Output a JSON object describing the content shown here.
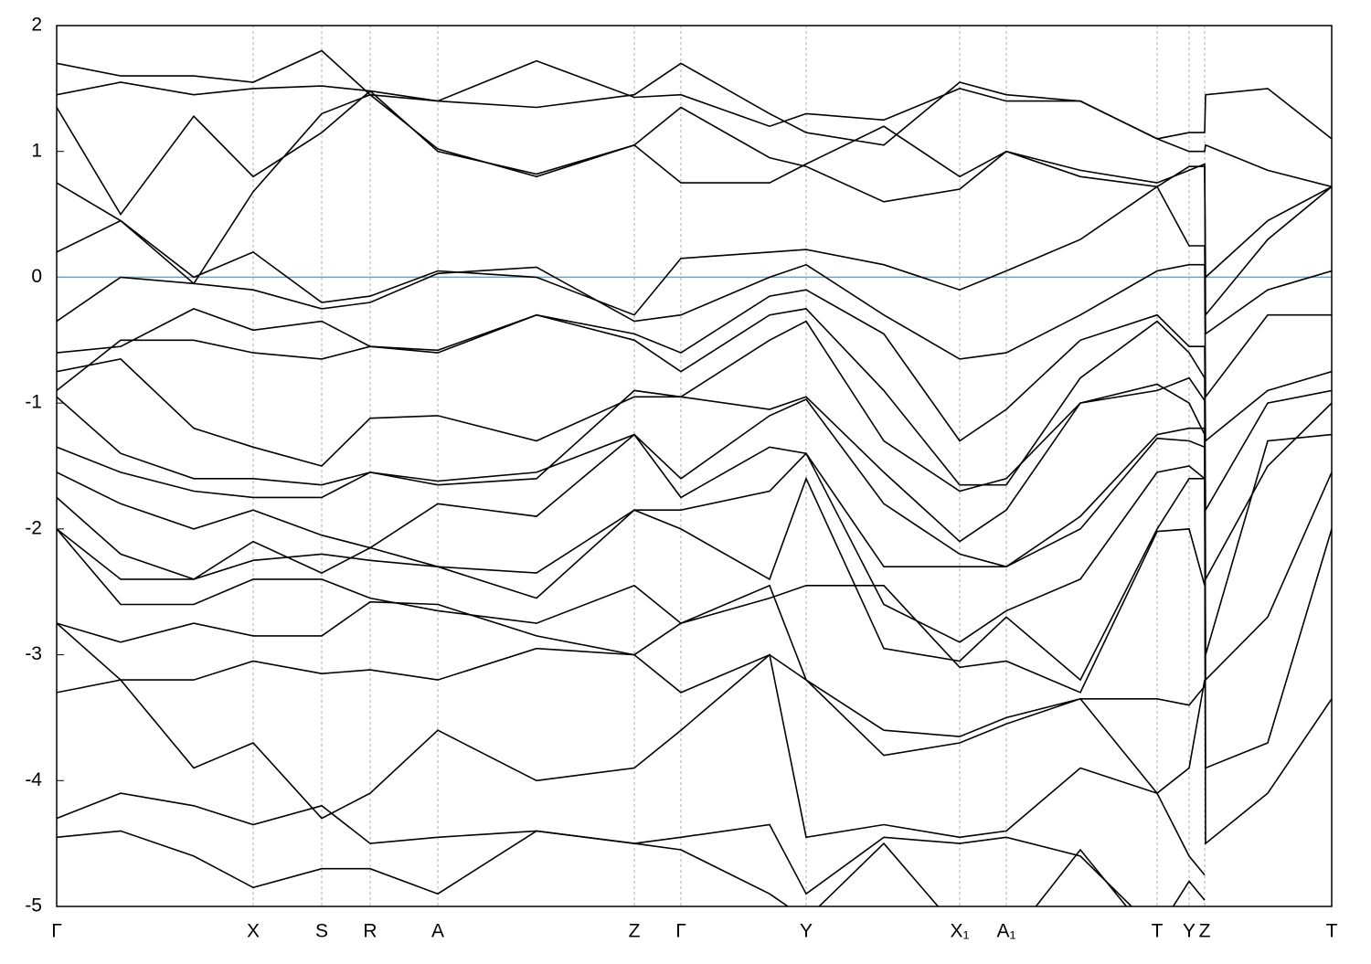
{
  "chart_data": {
    "type": "line",
    "xlim": [
      0,
      1395
    ],
    "ylim": [
      -5,
      2
    ],
    "yticks": [
      -5,
      -4,
      -3,
      -2,
      -1,
      0,
      1,
      2
    ],
    "xticks": [
      {
        "value": 0,
        "label": "Γ"
      },
      {
        "value": 215,
        "label": "X"
      },
      {
        "value": 290,
        "label": "S"
      },
      {
        "value": 343,
        "label": "R"
      },
      {
        "value": 417,
        "label": "A"
      },
      {
        "value": 632,
        "label": "Z"
      },
      {
        "value": 683,
        "label": "Γ"
      },
      {
        "value": 820,
        "label": "Y"
      },
      {
        "value": 988,
        "label": "X₁"
      },
      {
        "value": 1039,
        "label": "A₁"
      },
      {
        "value": 1204,
        "label": "T"
      },
      {
        "value": 1239,
        "label": "Y"
      },
      {
        "value": 1256,
        "label": "Z"
      },
      {
        "value": 1395,
        "label": "T"
      }
    ],
    "reference_line": {
      "value": 0,
      "color": "#5aaac8"
    },
    "x": [
      0,
      70,
      150,
      215,
      290,
      343,
      417,
      525,
      632,
      683,
      780,
      820,
      905,
      988,
      1039,
      1120,
      1204,
      1239,
      1256,
      1257,
      1325,
      1395
    ],
    "series": [
      {
        "color": "#000000",
        "values": [
          1.7,
          1.6,
          1.6,
          1.55,
          1.8,
          1.45,
          1.4,
          1.35,
          1.45,
          1.7,
          1.3,
          1.15,
          1.05,
          1.55,
          1.45,
          1.4,
          1.1,
          1.15,
          1.15,
          1.45,
          1.5,
          1.1
        ]
      },
      {
        "color": "#000000",
        "values": [
          1.45,
          1.55,
          1.45,
          1.5,
          1.52,
          1.48,
          1.4,
          1.72,
          1.43,
          1.45,
          1.2,
          1.3,
          1.25,
          1.5,
          1.4,
          1.4,
          1.1,
          1.0,
          1.0,
          1.05,
          0.85,
          0.72
        ]
      },
      {
        "color": "#000000",
        "values": [
          1.35,
          0.5,
          1.28,
          0.8,
          1.15,
          1.48,
          1.0,
          0.82,
          1.05,
          0.75,
          0.75,
          0.9,
          1.2,
          0.8,
          1.0,
          0.85,
          0.75,
          0.85,
          0.9,
          0.0,
          0.45,
          0.72
        ]
      },
      {
        "color": "#000000",
        "values": [
          0.75,
          0.45,
          -0.05,
          0.68,
          1.3,
          1.45,
          1.02,
          0.8,
          1.05,
          1.35,
          0.95,
          0.88,
          0.6,
          0.7,
          1.0,
          0.8,
          0.72,
          0.88,
          0.88,
          -0.3,
          0.3,
          0.72
        ]
      },
      {
        "color": "#000000",
        "values": [
          0.2,
          0.45,
          0.0,
          0.2,
          -0.2,
          -0.15,
          0.05,
          0.0,
          -0.3,
          0.15,
          0.2,
          0.22,
          0.1,
          -0.1,
          0.05,
          0.3,
          0.72,
          0.25,
          0.25,
          -0.45,
          -0.1,
          0.05
        ]
      },
      {
        "color": "#000000",
        "values": [
          -0.35,
          0.0,
          -0.05,
          -0.1,
          -0.25,
          -0.2,
          0.03,
          0.08,
          -0.35,
          -0.3,
          0.0,
          0.1,
          -0.3,
          -0.65,
          -0.6,
          -0.3,
          0.05,
          0.1,
          0.1,
          -0.95,
          -0.3,
          -0.3
        ]
      },
      {
        "color": "#000000",
        "values": [
          -0.6,
          -0.55,
          -0.25,
          -0.42,
          -0.35,
          -0.55,
          -0.6,
          -0.3,
          -0.45,
          -0.6,
          -0.15,
          -0.1,
          -0.45,
          -1.3,
          -1.05,
          -0.5,
          -0.3,
          -0.55,
          -0.55,
          -1.3,
          -0.9,
          -0.75
        ]
      },
      {
        "color": "#000000",
        "values": [
          -0.9,
          -0.5,
          -0.5,
          -0.6,
          -0.65,
          -0.55,
          -0.58,
          -0.3,
          -0.5,
          -0.75,
          -0.3,
          -0.25,
          -0.9,
          -1.65,
          -1.65,
          -0.8,
          -0.35,
          -0.6,
          -0.8,
          -1.85,
          -1.0,
          -0.9
        ]
      },
      {
        "color": "#000000",
        "values": [
          -0.75,
          -0.65,
          -1.2,
          -1.35,
          -1.5,
          -1.12,
          -1.1,
          -1.3,
          -0.95,
          -0.95,
          -0.5,
          -0.35,
          -1.3,
          -1.7,
          -1.6,
          -1.0,
          -0.9,
          -0.8,
          -0.98,
          -2.4,
          -1.5,
          -1.0
        ]
      },
      {
        "color": "#000000",
        "values": [
          -0.95,
          -1.4,
          -1.6,
          -1.6,
          -1.65,
          -1.55,
          -1.65,
          -1.6,
          -0.9,
          -0.95,
          -1.05,
          -0.95,
          -1.55,
          -2.1,
          -1.85,
          -1.0,
          -0.85,
          -1.0,
          -1.25,
          -3.0,
          -1.3,
          -1.25
        ]
      },
      {
        "color": "#000000",
        "values": [
          -1.35,
          -1.55,
          -1.7,
          -1.75,
          -1.75,
          -1.55,
          -1.62,
          -1.55,
          -1.25,
          -1.6,
          -1.1,
          -0.97,
          -1.8,
          -2.2,
          -2.3,
          -1.9,
          -1.25,
          -1.2,
          -1.2,
          -3.2,
          -2.7,
          -1.55
        ]
      },
      {
        "color": "#000000",
        "values": [
          -1.55,
          -1.8,
          -2.0,
          -1.85,
          -2.05,
          -2.15,
          -1.8,
          -1.9,
          -1.25,
          -1.75,
          -1.35,
          -1.4,
          -2.3,
          -2.3,
          -2.3,
          -2.0,
          -1.28,
          -1.3,
          -1.35,
          -3.9,
          -3.7,
          -2.0
        ]
      },
      {
        "color": "#000000",
        "values": [
          -1.75,
          -2.2,
          -2.4,
          -2.1,
          -2.35,
          -2.15,
          -2.3,
          -2.35,
          -1.85,
          -1.85,
          -1.7,
          -1.4,
          -2.6,
          -2.9,
          -2.65,
          -2.4,
          -1.55,
          -1.5,
          -1.6,
          -4.5,
          -4.1,
          -3.35
        ]
      },
      {
        "color": "#000000",
        "values": [
          -2.0,
          -2.4,
          -2.4,
          -2.25,
          -2.2,
          -2.25,
          -2.3,
          -2.55,
          -1.85,
          -2.0,
          -2.4,
          -1.6,
          -2.95,
          -3.05,
          -2.7,
          -3.2,
          -2.0,
          -1.6,
          -1.6,
          null,
          null,
          null
        ]
      },
      {
        "color": "#000000",
        "values": [
          -2.0,
          -2.6,
          -2.6,
          -2.4,
          -2.4,
          -2.55,
          -2.65,
          -2.75,
          -2.45,
          -2.75,
          -2.55,
          -2.45,
          -2.45,
          -3.1,
          -3.05,
          -3.3,
          -2.02,
          -2.0,
          -2.45,
          null,
          null,
          null
        ]
      },
      {
        "color": "#000000",
        "values": [
          -2.75,
          -2.9,
          -2.75,
          -2.85,
          -2.85,
          -2.58,
          -2.6,
          -2.85,
          -3.0,
          -2.75,
          -2.45,
          -3.2,
          -3.6,
          -3.65,
          -3.5,
          -3.35,
          -3.35,
          -3.4,
          -3.25,
          null,
          null,
          null
        ]
      },
      {
        "color": "#000000",
        "values": [
          -2.75,
          -3.2,
          -3.2,
          -3.05,
          -3.15,
          -3.12,
          -3.2,
          -2.95,
          -3.0,
          -3.3,
          -3.0,
          -3.2,
          -3.8,
          -3.7,
          -3.55,
          -3.35,
          -4.1,
          -3.9,
          -3.2,
          null,
          null,
          null
        ]
      },
      {
        "color": "#000000",
        "values": [
          -3.3,
          -3.2,
          -3.9,
          -3.7,
          -4.3,
          -4.1,
          -3.6,
          -4.0,
          -3.9,
          -3.6,
          -3.0,
          -4.45,
          -4.35,
          -4.45,
          -4.4,
          -3.9,
          -4.1,
          -4.6,
          -4.75,
          null,
          null,
          null
        ]
      },
      {
        "color": "#000000",
        "values": [
          -4.3,
          -4.1,
          -4.2,
          -4.35,
          -4.2,
          -4.5,
          -4.45,
          -4.4,
          -4.5,
          -4.45,
          -4.35,
          -4.9,
          -4.45,
          -4.5,
          -4.45,
          -4.6,
          -5.2,
          -4.8,
          -4.95,
          null,
          null,
          null
        ]
      },
      {
        "color": "#000000",
        "values": [
          -4.45,
          -4.4,
          -4.6,
          -4.85,
          -4.7,
          -4.7,
          -4.9,
          -4.4,
          -4.5,
          -4.55,
          -4.9,
          -5.1,
          -4.5,
          -5.2,
          -5.3,
          -4.55,
          -5.3,
          null,
          null,
          null,
          null,
          null
        ]
      }
    ]
  }
}
